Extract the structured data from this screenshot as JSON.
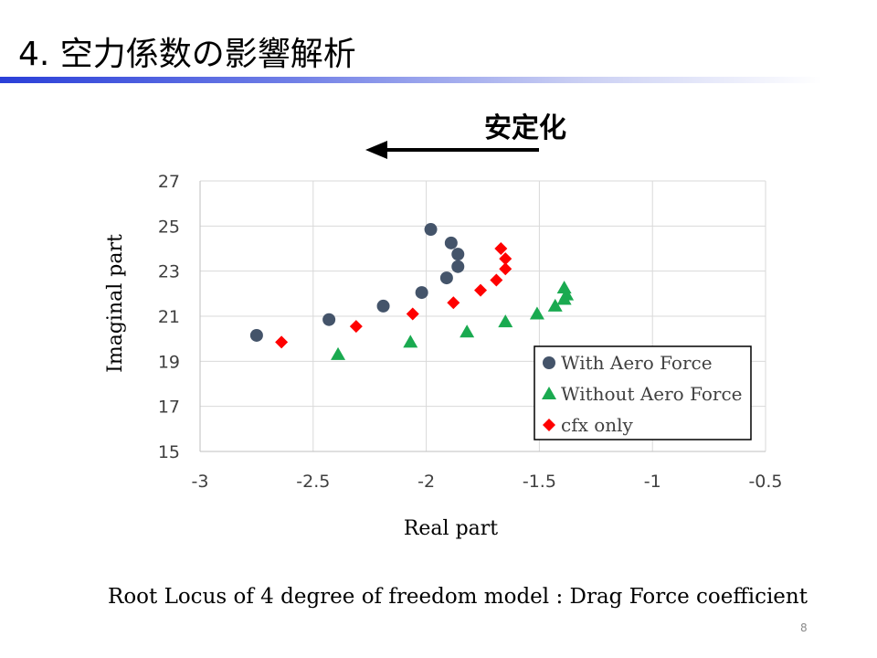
{
  "slide": {
    "title": "4. 空力係数の影響解析",
    "stability_label": "安定化",
    "stability_arrow_icon": "left-arrow-icon",
    "caption": "Root Locus of 4 degree of freedom model : Drag Force coefficient",
    "page_number": "8",
    "accent_color": "#2a3fd8"
  },
  "chart_data": {
    "type": "scatter",
    "title": "",
    "xlabel": "Real part",
    "ylabel": "Imaginal part",
    "xlim": [
      -3,
      -0.5
    ],
    "ylim": [
      15,
      27
    ],
    "x_ticks": [
      -3,
      -2.5,
      -2,
      -1.5,
      -1,
      -0.5
    ],
    "x_tick_labels": [
      "-3",
      "-2.5",
      "-2",
      "-1.5",
      "-1",
      "-0.5"
    ],
    "y_ticks": [
      15,
      17,
      19,
      21,
      23,
      25,
      27
    ],
    "y_tick_labels": [
      "15",
      "17",
      "19",
      "21",
      "23",
      "25",
      "27"
    ],
    "grid": true,
    "legend_position": "bottom-right",
    "series": [
      {
        "name": "With Aero Force",
        "marker": "circle",
        "color": "#44546a",
        "points": [
          [
            -2.75,
            20.15
          ],
          [
            -2.43,
            20.85
          ],
          [
            -2.19,
            21.45
          ],
          [
            -2.02,
            22.05
          ],
          [
            -1.91,
            22.7
          ],
          [
            -1.86,
            23.2
          ],
          [
            -1.86,
            23.75
          ],
          [
            -1.89,
            24.25
          ],
          [
            -1.98,
            24.85
          ]
        ]
      },
      {
        "name": "Without Aero Force",
        "marker": "triangle",
        "color": "#1aaa50",
        "points": [
          [
            -2.39,
            19.3
          ],
          [
            -2.07,
            19.85
          ],
          [
            -1.82,
            20.3
          ],
          [
            -1.65,
            20.75
          ],
          [
            -1.51,
            21.1
          ],
          [
            -1.43,
            21.45
          ],
          [
            -1.39,
            21.75
          ],
          [
            -1.38,
            21.95
          ],
          [
            -1.39,
            22.25
          ]
        ]
      },
      {
        "name": "cfx only",
        "marker": "diamond",
        "color": "#ff0000",
        "points": [
          [
            -2.64,
            19.85
          ],
          [
            -2.31,
            20.55
          ],
          [
            -2.06,
            21.1
          ],
          [
            -1.88,
            21.6
          ],
          [
            -1.76,
            22.15
          ],
          [
            -1.69,
            22.6
          ],
          [
            -1.65,
            23.1
          ],
          [
            -1.65,
            23.55
          ],
          [
            -1.67,
            24.0
          ]
        ]
      }
    ]
  }
}
